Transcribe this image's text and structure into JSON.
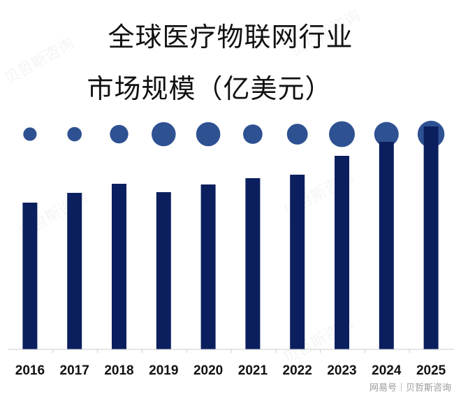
{
  "header": {
    "title_line1": "全球医疗物联网行业",
    "title_line2": "市场规模（亿美元）"
  },
  "watermark_text": "贝哲斯咨询",
  "footer": {
    "text": "网易号｜贝哲斯咨询"
  },
  "colors": {
    "bar": "#0b1f5e",
    "bubble": "#2e5192",
    "axis": "#cccccc"
  },
  "chart_data": {
    "type": "bar",
    "categories": [
      "2016",
      "2017",
      "2018",
      "2019",
      "2020",
      "2021",
      "2022",
      "2023",
      "2024",
      "2025"
    ],
    "values": [
      210,
      224,
      237,
      225,
      236,
      245,
      250,
      277,
      297,
      319
    ],
    "bubble_scale": [
      0.4,
      0.43,
      0.55,
      0.72,
      0.72,
      0.58,
      0.62,
      0.77,
      0.73,
      0.8
    ],
    "ylim": [
      0,
      320
    ],
    "xlabel": "",
    "ylabel": "",
    "grid": false,
    "legend": "none"
  }
}
